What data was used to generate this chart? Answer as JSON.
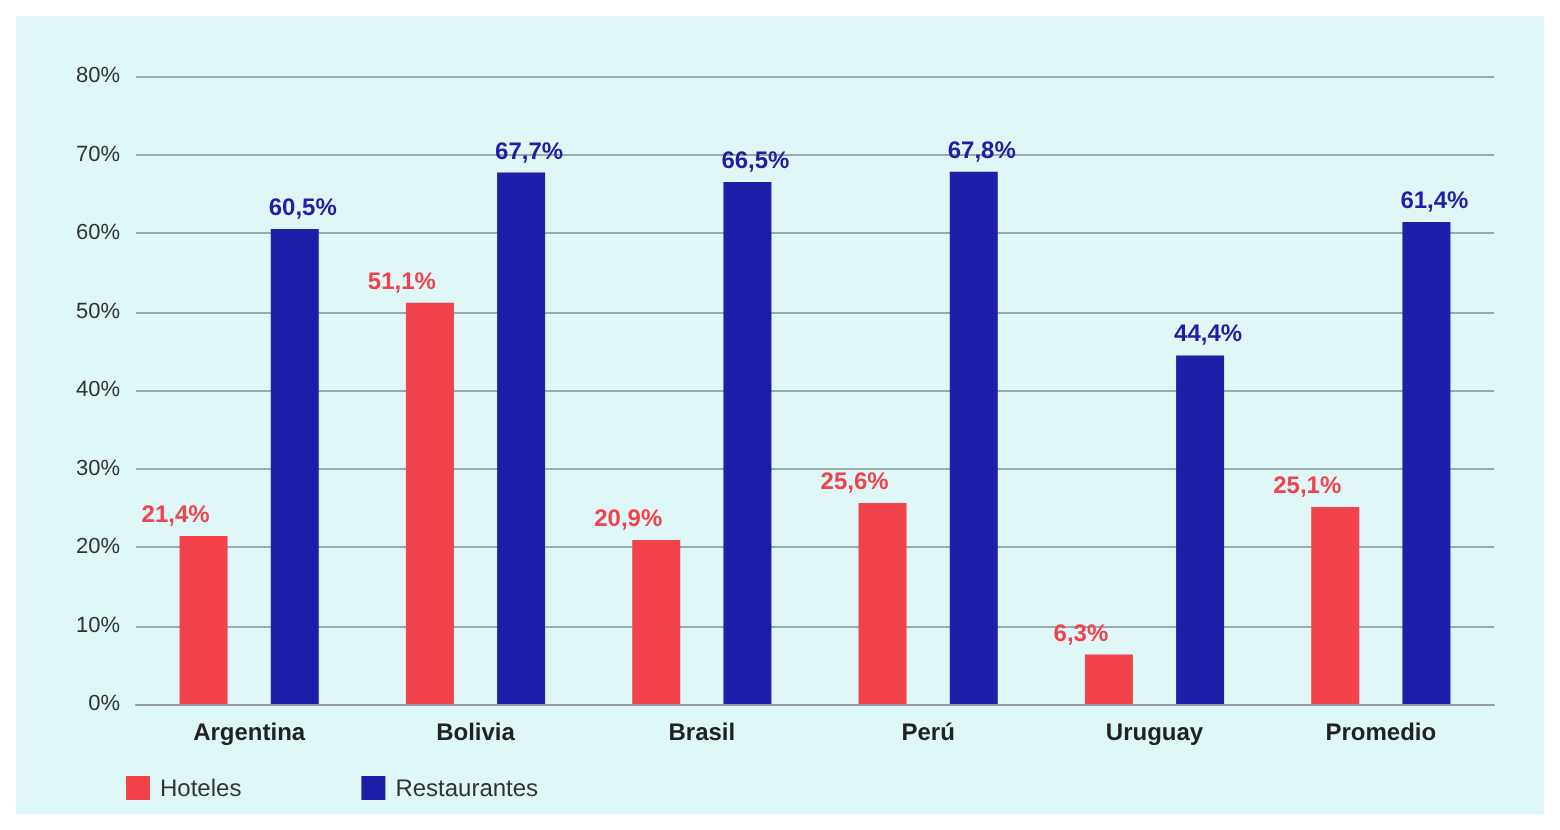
{
  "chart_data": {
    "type": "bar",
    "categories": [
      "Argentina",
      "Bolivia",
      "Brasil",
      "Perú",
      "Uruguay",
      "Promedio"
    ],
    "series": [
      {
        "name": "Hoteles",
        "color": "#f2424b",
        "values": [
          21.4,
          51.1,
          20.9,
          25.6,
          6.3,
          25.1
        ],
        "value_labels": [
          "21,4%",
          "51,1%",
          "20,9%",
          "25,6%",
          "6,3%",
          "25,1%"
        ]
      },
      {
        "name": "Restaurantes",
        "color": "#1c1fa8",
        "values": [
          60.5,
          67.7,
          66.5,
          67.8,
          44.4,
          61.4
        ],
        "value_labels": [
          "60,5%",
          "67,7%",
          "66,5%",
          "67,8%",
          "44,4%",
          "61,4%"
        ]
      }
    ],
    "ylim": [
      0,
      80
    ],
    "yticks": [
      {
        "value": 0,
        "label": "0%"
      },
      {
        "value": 10,
        "label": "10%"
      },
      {
        "value": 20,
        "label": "20%"
      },
      {
        "value": 30,
        "label": "30%"
      },
      {
        "value": 40,
        "label": "40%"
      },
      {
        "value": 50,
        "label": "50%"
      },
      {
        "value": 60,
        "label": "60%"
      },
      {
        "value": 70,
        "label": "70%"
      },
      {
        "value": 80,
        "label": "80%"
      }
    ],
    "grid": "y",
    "legend": "bottom left"
  }
}
